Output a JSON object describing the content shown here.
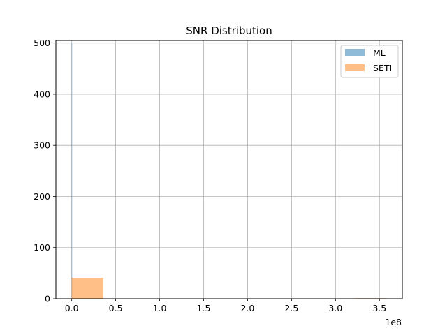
{
  "chart_data": {
    "type": "bar",
    "title": "SNR Distribution",
    "xlabel": "",
    "ylabel": "",
    "x_offset_label": "1e8",
    "xlim": [
      -0.18,
      3.76
    ],
    "ylim": [
      0,
      505
    ],
    "xticks": [
      0.0,
      0.5,
      1.0,
      1.5,
      2.0,
      2.5,
      3.0,
      3.5
    ],
    "xtick_labels": [
      "0.0",
      "0.5",
      "1.0",
      "1.5",
      "2.0",
      "2.5",
      "3.0",
      "3.5"
    ],
    "yticks": [
      0,
      100,
      200,
      300,
      400,
      500
    ],
    "ytick_labels": [
      "0",
      "100",
      "200",
      "300",
      "400",
      "500"
    ],
    "grid": true,
    "legend_position": "top-right",
    "series": [
      {
        "name": "ML",
        "color": "#1f77b4",
        "alpha": 0.5,
        "bins": [
          {
            "x0": 0.0,
            "x1": 0.0036,
            "count": 500
          }
        ]
      },
      {
        "name": "SETI",
        "color": "#ff7f0e",
        "alpha": 0.5,
        "bins": [
          {
            "x0": 0.0,
            "x1": 0.358,
            "count": 41
          },
          {
            "x0": 3.22,
            "x1": 3.58,
            "count": 1
          }
        ]
      }
    ]
  }
}
